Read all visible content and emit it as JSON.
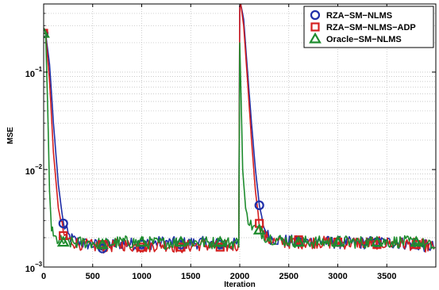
{
  "chart_data": {
    "type": "line",
    "title": "",
    "xlabel": "Iteration",
    "ylabel": "MSE",
    "yscale": "log",
    "xlim": [
      0,
      4000
    ],
    "ylim": [
      0.001,
      0.5
    ],
    "grid": true,
    "legend_position": "top-right",
    "x_ticks": [
      0,
      500,
      1000,
      1500,
      2000,
      2500,
      3000,
      3500
    ],
    "y_ticks": [
      {
        "value": 0.001,
        "base": "10",
        "exp": "−3"
      },
      {
        "value": 0.01,
        "base": "10",
        "exp": "−2"
      },
      {
        "value": 0.1,
        "base": "10",
        "exp": "−1"
      }
    ],
    "series": [
      {
        "name": "RZA−SM−NLMS",
        "color": "#1f2fa8",
        "marker": "circle",
        "x": [
          0,
          20,
          60,
          100,
          150,
          200,
          250,
          300,
          400,
          500,
          600,
          800,
          1000,
          1200,
          1400,
          1600,
          1800,
          1990,
          2000,
          2010,
          2040,
          2080,
          2120,
          2160,
          2200,
          2250,
          2300,
          2400,
          2600,
          2800,
          3000,
          3200,
          3400,
          3600,
          3800,
          3990
        ],
        "y": [
          0.25,
          0.25,
          0.12,
          0.03,
          0.007,
          0.0028,
          0.0021,
          0.0019,
          0.00175,
          0.0017,
          0.00165,
          0.00175,
          0.0017,
          0.0018,
          0.00175,
          0.00178,
          0.0017,
          0.00172,
          0.48,
          0.5,
          0.35,
          0.1,
          0.03,
          0.01,
          0.0043,
          0.0025,
          0.002,
          0.0019,
          0.0018,
          0.00182,
          0.00178,
          0.00176,
          0.0018,
          0.00178,
          0.0017,
          0.0016
        ],
        "marker_x": [
          0,
          200,
          600,
          1000,
          1400,
          1800,
          2200,
          2600,
          3000,
          3400,
          3800
        ],
        "marker_y": [
          0.25,
          0.0028,
          0.00155,
          0.0017,
          0.0017,
          0.0017,
          0.0043,
          0.0018,
          0.0018,
          0.0018,
          0.0017
        ]
      },
      {
        "name": "RZA−SM−NLMS−ADP",
        "color": "#d42020",
        "marker": "square",
        "x": [
          0,
          20,
          60,
          100,
          150,
          200,
          250,
          300,
          400,
          500,
          600,
          800,
          1000,
          1200,
          1400,
          1600,
          1800,
          1990,
          2000,
          2010,
          2040,
          2080,
          2120,
          2160,
          2200,
          2250,
          2300,
          2400,
          2600,
          2800,
          3000,
          3200,
          3400,
          3600,
          3800,
          3990
        ],
        "y": [
          0.25,
          0.25,
          0.08,
          0.015,
          0.004,
          0.0022,
          0.0019,
          0.0018,
          0.0017,
          0.00165,
          0.0016,
          0.0017,
          0.0016,
          0.0017,
          0.0016,
          0.0017,
          0.0016,
          0.00168,
          0.48,
          0.5,
          0.3,
          0.08,
          0.02,
          0.006,
          0.0028,
          0.0021,
          0.0019,
          0.0018,
          0.00178,
          0.0018,
          0.00176,
          0.00178,
          0.00176,
          0.00175,
          0.0017,
          0.0016
        ],
        "marker_x": [
          0,
          200,
          600,
          1000,
          1400,
          1800,
          2200,
          2600,
          3000,
          3400,
          3800
        ],
        "marker_y": [
          0.25,
          0.0021,
          0.0017,
          0.0016,
          0.0016,
          0.0016,
          0.0028,
          0.0019,
          0.0018,
          0.0017,
          0.0017
        ]
      },
      {
        "name": "Oracle−SM−NLMS",
        "color": "#1e8c2e",
        "marker": "triangle",
        "x": [
          0,
          20,
          40,
          60,
          80,
          100,
          140,
          200,
          260,
          300,
          400,
          500,
          600,
          800,
          1000,
          1200,
          1400,
          1600,
          1800,
          1990,
          2000,
          2010,
          2030,
          2060,
          2100,
          2150,
          2200,
          2250,
          2300,
          2400,
          2600,
          2800,
          3000,
          3200,
          3400,
          3600,
          3800,
          3990
        ],
        "y": [
          0.25,
          0.25,
          0.05,
          0.006,
          0.0025,
          0.002,
          0.0019,
          0.0018,
          0.0018,
          0.00175,
          0.0018,
          0.00178,
          0.0017,
          0.00182,
          0.00178,
          0.00176,
          0.0018,
          0.0018,
          0.00176,
          0.00178,
          0.2,
          0.08,
          0.01,
          0.004,
          0.0028,
          0.0025,
          0.0024,
          0.0021,
          0.002,
          0.0019,
          0.00182,
          0.0018,
          0.00182,
          0.0018,
          0.0018,
          0.00182,
          0.00178,
          0.0016
        ],
        "marker_x": [
          0,
          200,
          600,
          1000,
          1400,
          1800,
          2200,
          2600,
          3000,
          3400,
          3800
        ],
        "marker_y": [
          0.25,
          0.0018,
          0.0017,
          0.0018,
          0.0018,
          0.0018,
          0.0024,
          0.0018,
          0.0018,
          0.0018,
          0.0018
        ]
      }
    ]
  }
}
